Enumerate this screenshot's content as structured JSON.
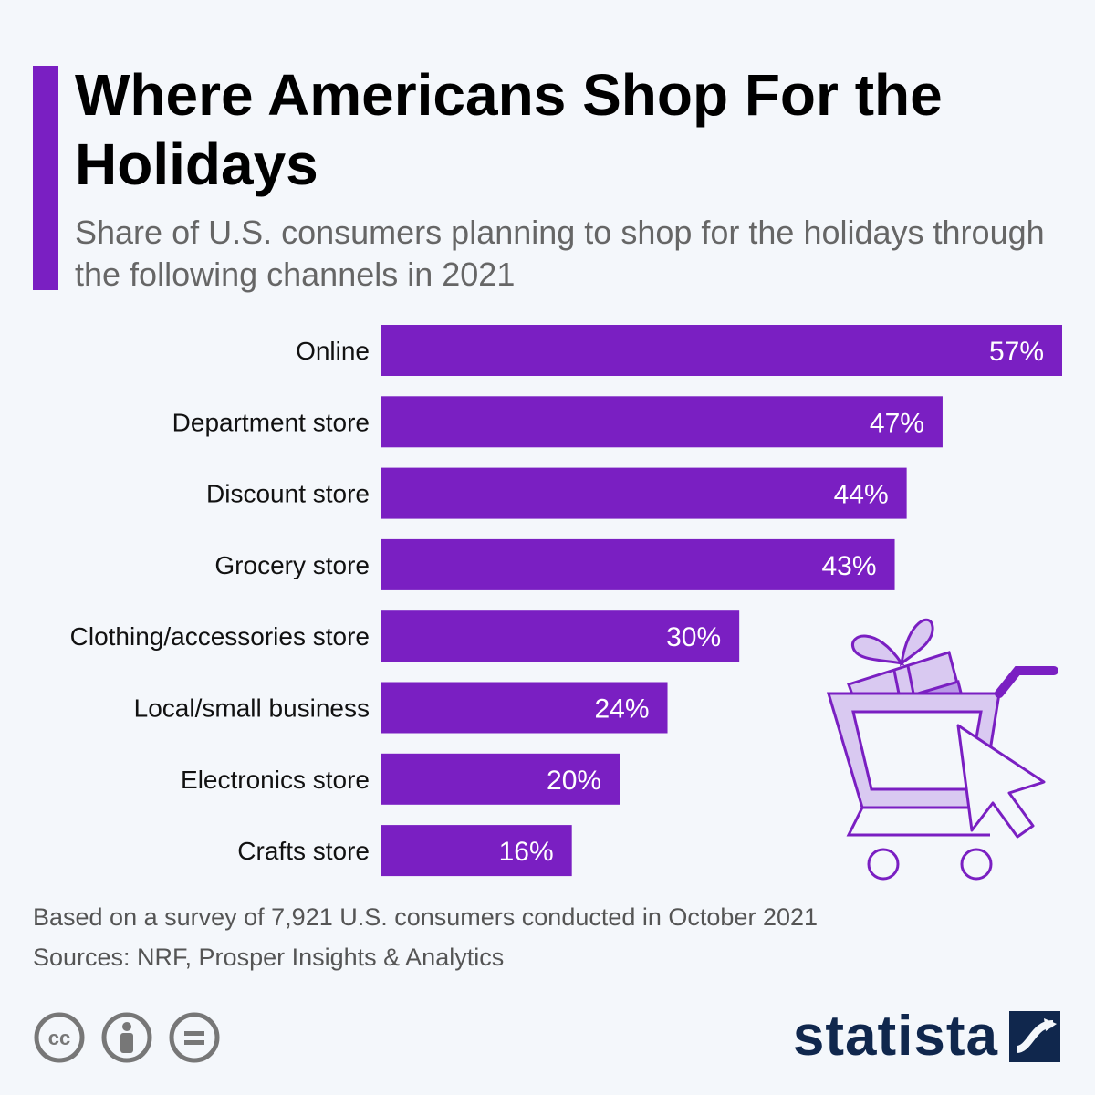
{
  "header": {
    "title": "Where Americans Shop For the Holidays",
    "subtitle": "Share of U.S. consumers planning to shop for the holidays through the following channels in 2021"
  },
  "footer": {
    "note": "Based on a survey of 7,921 U.S. consumers conducted in October 2021",
    "sources": "Sources: NRF, Prosper Insights & Analytics",
    "brand": "statista",
    "license_icons": [
      "cc-icon",
      "attribution-icon",
      "no-derivatives-icon"
    ]
  },
  "colors": {
    "bar": "#7a1fc2",
    "accent": "#7a1fc2",
    "illustration_light": "#d9c9f1",
    "illustration_mid": "#b899e6",
    "illustration_stroke": "#7a1fc2",
    "brand": "#10274d"
  },
  "chart_data": {
    "type": "bar",
    "orientation": "horizontal",
    "categories": [
      "Online",
      "Department store",
      "Discount store",
      "Grocery store",
      "Clothing/accessories store",
      "Local/small business",
      "Electronics store",
      "Crafts store"
    ],
    "values": [
      57,
      47,
      44,
      43,
      30,
      24,
      20,
      16
    ],
    "value_labels": [
      "57%",
      "47%",
      "44%",
      "43%",
      "30%",
      "24%",
      "20%",
      "16%"
    ],
    "unit": "%",
    "xlim": [
      0,
      57
    ],
    "grid": false,
    "legend": "none"
  },
  "illustration": {
    "icons": [
      "shopping-cart-icon",
      "gift-box-icon",
      "mouse-cursor-icon"
    ]
  }
}
